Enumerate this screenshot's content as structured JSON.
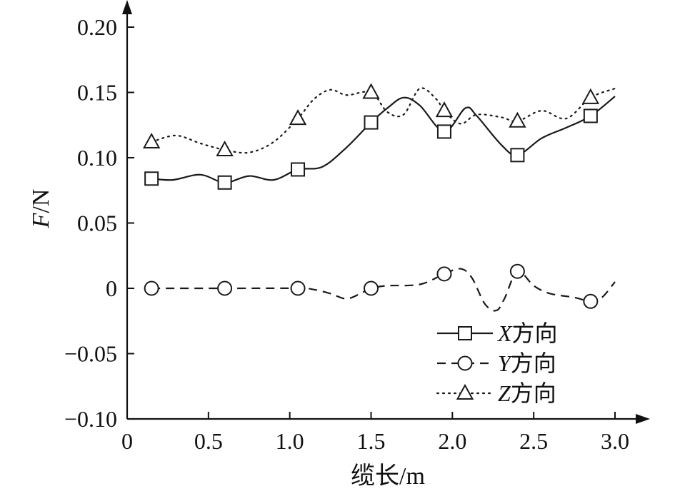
{
  "chart_data": {
    "type": "line",
    "xlabel": "缆长/m",
    "ylabel": {
      "var": "F",
      "unit": "/N"
    },
    "xlim": [
      0,
      3.0
    ],
    "ylim": [
      -0.1,
      0.2
    ],
    "xticks": [
      0,
      0.5,
      1.0,
      1.5,
      2.0,
      2.5,
      3.0
    ],
    "xtick_labels": [
      "0",
      "0.5",
      "1.0",
      "1.5",
      "2.0",
      "2.5",
      "3.0"
    ],
    "yticks": [
      -0.1,
      -0.05,
      0,
      0.05,
      0.1,
      0.15,
      0.2
    ],
    "ytick_labels": [
      "−0.10",
      "−0.05",
      "0",
      "0.05",
      "0.10",
      "0.15",
      "0.20"
    ],
    "grid": false,
    "legend_position": "bottom-right",
    "series": [
      {
        "name": "X方向",
        "name_var": "X",
        "name_text": "方向",
        "line_style": "solid",
        "marker": "square",
        "markers": [
          [
            0.15,
            0.084
          ],
          [
            0.6,
            0.081
          ],
          [
            1.05,
            0.091
          ],
          [
            1.5,
            0.127
          ],
          [
            1.95,
            0.12
          ],
          [
            2.4,
            0.102
          ],
          [
            2.85,
            0.132
          ]
        ],
        "curve": [
          [
            0.15,
            0.084
          ],
          [
            0.28,
            0.083
          ],
          [
            0.45,
            0.087
          ],
          [
            0.6,
            0.081
          ],
          [
            0.75,
            0.086
          ],
          [
            0.9,
            0.083
          ],
          [
            1.05,
            0.091
          ],
          [
            1.2,
            0.093
          ],
          [
            1.35,
            0.108
          ],
          [
            1.5,
            0.127
          ],
          [
            1.6,
            0.138
          ],
          [
            1.7,
            0.146
          ],
          [
            1.8,
            0.14
          ],
          [
            1.95,
            0.12
          ],
          [
            2.08,
            0.138
          ],
          [
            2.15,
            0.132
          ],
          [
            2.3,
            0.11
          ],
          [
            2.4,
            0.102
          ],
          [
            2.55,
            0.115
          ],
          [
            2.7,
            0.123
          ],
          [
            2.85,
            0.132
          ],
          [
            3.0,
            0.147
          ]
        ]
      },
      {
        "name": "Y方向",
        "name_var": "Y",
        "name_text": "方向",
        "line_style": "dashed",
        "marker": "circle",
        "markers": [
          [
            0.15,
            0.0
          ],
          [
            0.6,
            0.0
          ],
          [
            1.05,
            0.0
          ],
          [
            1.5,
            0.0
          ],
          [
            1.95,
            0.011
          ],
          [
            2.4,
            0.013
          ],
          [
            2.85,
            -0.01
          ]
        ],
        "curve": [
          [
            0.15,
            0.0
          ],
          [
            0.6,
            0.0
          ],
          [
            1.05,
            0.0
          ],
          [
            1.15,
            -0.001
          ],
          [
            1.25,
            -0.004
          ],
          [
            1.35,
            -0.008
          ],
          [
            1.45,
            -0.003
          ],
          [
            1.5,
            0.0
          ],
          [
            1.6,
            0.002
          ],
          [
            1.8,
            0.003
          ],
          [
            1.95,
            0.011
          ],
          [
            2.05,
            0.015
          ],
          [
            2.12,
            0.008
          ],
          [
            2.2,
            -0.012
          ],
          [
            2.27,
            -0.017
          ],
          [
            2.32,
            -0.008
          ],
          [
            2.4,
            0.013
          ],
          [
            2.5,
            0.002
          ],
          [
            2.6,
            -0.004
          ],
          [
            2.75,
            -0.007
          ],
          [
            2.85,
            -0.01
          ],
          [
            2.92,
            -0.007
          ],
          [
            3.0,
            0.005
          ]
        ]
      },
      {
        "name": "Z方向",
        "name_var": "Z",
        "name_text": "方向",
        "line_style": "dotted",
        "marker": "triangle",
        "markers": [
          [
            0.15,
            0.112
          ],
          [
            0.6,
            0.106
          ],
          [
            1.05,
            0.13
          ],
          [
            1.5,
            0.15
          ],
          [
            1.95,
            0.136
          ],
          [
            2.4,
            0.128
          ],
          [
            2.85,
            0.146
          ]
        ],
        "curve": [
          [
            0.15,
            0.112
          ],
          [
            0.3,
            0.117
          ],
          [
            0.45,
            0.111
          ],
          [
            0.6,
            0.106
          ],
          [
            0.75,
            0.104
          ],
          [
            0.9,
            0.112
          ],
          [
            1.05,
            0.13
          ],
          [
            1.15,
            0.145
          ],
          [
            1.25,
            0.152
          ],
          [
            1.35,
            0.148
          ],
          [
            1.5,
            0.15
          ],
          [
            1.6,
            0.135
          ],
          [
            1.7,
            0.133
          ],
          [
            1.8,
            0.153
          ],
          [
            1.9,
            0.145
          ],
          [
            1.95,
            0.136
          ],
          [
            2.05,
            0.126
          ],
          [
            2.15,
            0.133
          ],
          [
            2.3,
            0.131
          ],
          [
            2.4,
            0.128
          ],
          [
            2.55,
            0.136
          ],
          [
            2.7,
            0.13
          ],
          [
            2.85,
            0.146
          ],
          [
            3.0,
            0.153
          ]
        ]
      }
    ]
  }
}
